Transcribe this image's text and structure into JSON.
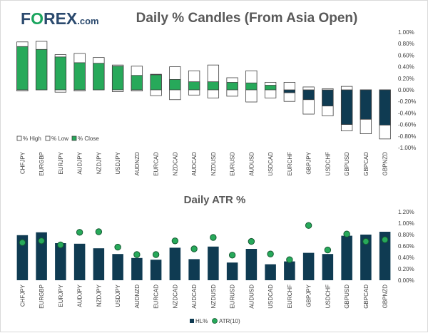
{
  "brand": {
    "name_part1": "F",
    "name_o": "O",
    "name_part2": "REX",
    "suffix": ".com",
    "o_color": "#1aa55e",
    "text_color": "#2b4a6e"
  },
  "colors": {
    "navy": "#0f3b52",
    "green": "#27a95a",
    "dark_green": "#145a32",
    "grid": "#d9d9d9",
    "text": "#404040"
  },
  "chart_data": [
    {
      "type": "bar",
      "title": "Daily % Candles (From Asia Open)",
      "categories": [
        "CHFJPY",
        "EURGBP",
        "EURJPY",
        "AUDJPY",
        "NZDJPY",
        "USDJPY",
        "AUDNZD",
        "EURCAD",
        "NZDCAD",
        "AUDCAD",
        "NZDUSD",
        "EURUSD",
        "AUDUSD",
        "USDCAD",
        "EURCHF",
        "GBPJPY",
        "USDCHF",
        "GBPUSD",
        "GBPCAD",
        "GBPNZD"
      ],
      "series": [
        {
          "name": "% High",
          "values": [
            0.83,
            0.84,
            0.61,
            0.63,
            0.56,
            0.43,
            0.41,
            0.27,
            0.4,
            0.33,
            0.43,
            0.21,
            0.33,
            0.13,
            0.13,
            0.05,
            0.02,
            0.06,
            0.0,
            0.0
          ]
        },
        {
          "name": "% Low",
          "values": [
            -0.02,
            0.0,
            -0.04,
            -0.02,
            0.0,
            -0.03,
            -0.02,
            -0.1,
            -0.17,
            -0.09,
            -0.14,
            -0.11,
            -0.21,
            -0.14,
            -0.2,
            -0.42,
            -0.45,
            -0.71,
            -0.76,
            -0.85
          ]
        },
        {
          "name": "% Close",
          "values": [
            0.75,
            0.7,
            0.57,
            0.47,
            0.46,
            0.41,
            0.25,
            0.26,
            0.18,
            0.14,
            0.14,
            0.13,
            0.12,
            0.08,
            -0.05,
            -0.17,
            -0.28,
            -0.6,
            -0.51,
            -0.61
          ]
        }
      ],
      "y_ticks": [
        "1.00%",
        "0.80%",
        "0.60%",
        "0.40%",
        "0.20%",
        "0.00%",
        "-0.20%",
        "-0.40%",
        "-0.60%",
        "-0.80%",
        "-1.00%"
      ],
      "ylim": [
        -1.0,
        1.0
      ],
      "legend": "bottom-left"
    },
    {
      "type": "bar",
      "title": "Daily ATR %",
      "categories": [
        "CHFJPY",
        "EURGBP",
        "EURJPY",
        "AUDJPY",
        "NZDJPY",
        "USDJPY",
        "AUDNZD",
        "EURCAD",
        "NZDCAD",
        "AUDCAD",
        "NZDUSD",
        "EURUSD",
        "AUDUSD",
        "USDCAD",
        "EURCHF",
        "GBPJPY",
        "USDCHF",
        "GBPUSD",
        "GBPCAD",
        "GBPNZD"
      ],
      "series": [
        {
          "name": "HL%",
          "values": [
            0.79,
            0.84,
            0.65,
            0.64,
            0.56,
            0.46,
            0.39,
            0.36,
            0.57,
            0.37,
            0.59,
            0.31,
            0.55,
            0.28,
            0.33,
            0.48,
            0.46,
            0.78,
            0.8,
            0.85
          ]
        },
        {
          "name": "ATR(10)",
          "values": [
            0.66,
            0.69,
            0.62,
            0.84,
            0.85,
            0.58,
            0.45,
            0.45,
            0.69,
            0.55,
            0.75,
            0.44,
            0.68,
            0.46,
            0.36,
            0.96,
            0.53,
            0.81,
            0.68,
            0.71
          ]
        }
      ],
      "y_ticks": [
        "1.20%",
        "1.00%",
        "0.80%",
        "0.60%",
        "0.40%",
        "0.20%",
        "0.00%"
      ],
      "ylim": [
        0,
        1.2
      ],
      "legend": "bottom-center"
    }
  ]
}
